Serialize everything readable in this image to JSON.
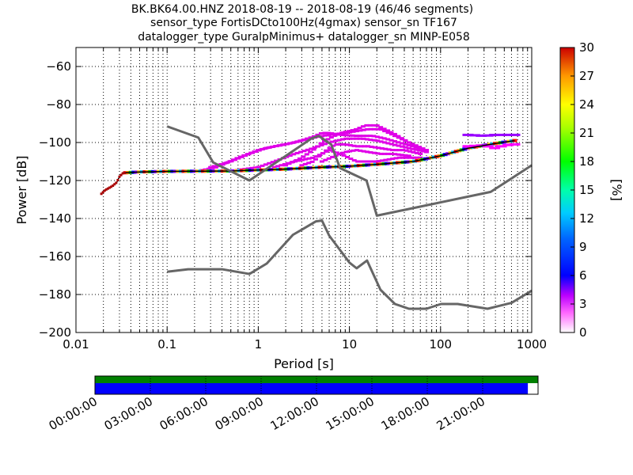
{
  "title": {
    "line1": "BK.BK64.00.HNZ   2018-08-19 -- 2018-08-19  (46/46 segments)",
    "line2": "sensor_type FortisDCto100Hz(4gmax) sensor_sn TF167",
    "line3": "datalogger_type GuralpMinimus+ datalogger_sn MINP-E058"
  },
  "chart_data": [
    {
      "type": "heatmap",
      "xlabel": "Period [s]",
      "ylabel": "Power [dB]",
      "x_scale": "log",
      "xlim": [
        0.01,
        1000
      ],
      "ylim": [
        -200,
        -50
      ],
      "x_ticks": [
        0.01,
        0.1,
        1,
        10,
        100,
        1000
      ],
      "x_tick_labels": [
        "0.01",
        "0.1",
        "1",
        "10",
        "100",
        "1000"
      ],
      "y_ticks": [
        -200,
        -180,
        -160,
        -140,
        -120,
        -100,
        -80,
        -60
      ],
      "y_tick_labels": [
        "−200",
        "−180",
        "−160",
        "−140",
        "−120",
        "−100",
        "−80",
        "−60"
      ],
      "grid": "dotted",
      "colorbar": {
        "label": "[%]",
        "min": 0,
        "max": 30,
        "ticks": [
          0,
          3,
          6,
          9,
          12,
          15,
          18,
          21,
          24,
          27,
          30
        ]
      },
      "noise_model_high": {
        "x": [
          0.1,
          0.22,
          0.32,
          0.8,
          3.8,
          4.6,
          6.3,
          7.9,
          15.4,
          20,
          354.8,
          1000
        ],
        "y": [
          -91.5,
          -97.4,
          -110.5,
          -120,
          -98,
          -96.5,
          -101,
          -113.5,
          -120,
          -138.5,
          -126,
          -112
        ]
      },
      "noise_model_low": {
        "x": [
          0.1,
          0.17,
          0.4,
          0.8,
          1.24,
          2.4,
          4.3,
          5,
          6,
          10,
          12,
          15.6,
          21.9,
          31.6,
          45,
          70,
          101,
          154,
          328,
          600,
          1000
        ],
        "y": [
          -168,
          -166.7,
          -166.7,
          -169.2,
          -163.7,
          -148.6,
          -141.5,
          -141.1,
          -149,
          -163.2,
          -166.2,
          -162.1,
          -177.5,
          -185,
          -187.5,
          -187.5,
          -185,
          -185,
          -187.5,
          -184.4,
          -178
        ]
      },
      "mode_curve": {
        "x": [
          0.019,
          0.021,
          0.025,
          0.028,
          0.03,
          0.033,
          0.05,
          0.1,
          0.5,
          1,
          2,
          5,
          10,
          20,
          50,
          100,
          200,
          400,
          650
        ],
        "y": [
          -127,
          -125,
          -123,
          -121,
          -118,
          -116,
          -115.5,
          -115.2,
          -115,
          -114.5,
          -114,
          -113,
          -112.5,
          -111.5,
          -110,
          -107,
          -103,
          -100.5,
          -99
        ]
      },
      "spread_curves": [
        {
          "x": [
            0.22,
            0.35,
            0.6,
            1,
            1.5,
            2.5,
            4,
            5,
            6,
            8,
            12,
            18,
            25,
            35,
            50,
            70
          ],
          "y": [
            -115,
            -113,
            -108,
            -104,
            -102,
            -100,
            -97,
            -95,
            -95,
            -96,
            -96.5,
            -96.5,
            -98,
            -100,
            -102,
            -105
          ]
        },
        {
          "x": [
            0.3,
            0.5,
            0.8,
            1.2,
            2,
            3,
            4.5,
            6,
            9,
            12,
            16,
            22,
            30,
            45,
            70
          ],
          "y": [
            -113,
            -110,
            -106,
            -103,
            -101,
            -99,
            -97,
            -96,
            -95,
            -94,
            -93,
            -93,
            -96,
            -100,
            -104
          ]
        },
        {
          "x": [
            2,
            3,
            4,
            5,
            6.5,
            8,
            10,
            12,
            15,
            20,
            30,
            45,
            70
          ],
          "y": [
            -112,
            -108,
            -104,
            -100,
            -97,
            -95,
            -94,
            -93,
            -91,
            -91,
            -95,
            -100,
            -104
          ]
        },
        {
          "x": [
            0.5,
            1,
            1.5,
            2.5,
            4,
            6,
            9,
            14,
            20,
            30,
            45,
            70
          ],
          "y": [
            -115,
            -113,
            -110,
            -106,
            -103,
            -100,
            -98,
            -98,
            -99,
            -101,
            -103,
            -105
          ]
        },
        {
          "x": [
            3,
            4,
            5,
            6,
            7,
            9,
            12,
            16,
            22,
            30,
            40,
            60
          ],
          "y": [
            -112,
            -110,
            -106,
            -103,
            -101,
            -101,
            -102,
            -102,
            -103,
            -104,
            -104,
            -106
          ]
        },
        {
          "x": [
            1.5,
            2.5,
            4,
            5,
            6,
            8,
            12,
            20,
            35,
            60
          ],
          "y": [
            -113,
            -110,
            -108,
            -106,
            -104,
            -106,
            -110,
            -110,
            -108,
            -108
          ]
        },
        {
          "x": [
            5,
            7,
            9,
            12,
            16,
            22,
            30,
            45
          ],
          "y": [
            -110,
            -107,
            -105,
            -104,
            -105,
            -106,
            -106,
            -107
          ]
        }
      ],
      "upper_band": {
        "x": [
          200,
          300,
          400,
          500,
          650
        ],
        "y": [
          -96,
          -96.5,
          -96,
          -96,
          -96
        ]
      },
      "lower_band": {
        "x": [
          200,
          300,
          400,
          500,
          650
        ],
        "y": [
          -102,
          -101.5,
          -103,
          -101.5,
          -101
        ]
      }
    },
    {
      "type": "timeline",
      "tick_labels": [
        "00:00:00",
        "03:00:00",
        "06:00:00",
        "09:00:00",
        "12:00:00",
        "15:00:00",
        "18:00:00",
        "21:00:00"
      ],
      "coverage": {
        "data_fraction": 1.0,
        "psd_fraction": 0.977,
        "data_color": "#008000",
        "psd_color": "#0000ff"
      }
    }
  ],
  "colors": {
    "noise_model": "#666666",
    "mode_curve": "#000000",
    "timeline_data": "#008000",
    "timeline_psd": "#0000ff"
  }
}
